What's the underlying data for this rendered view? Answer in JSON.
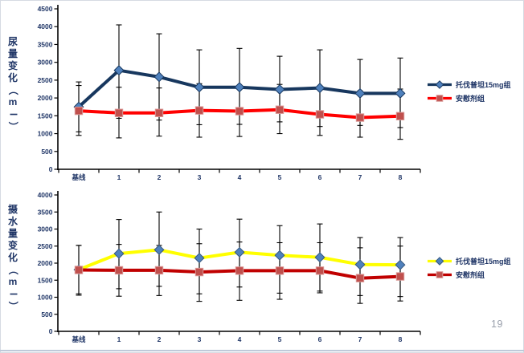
{
  "slide": {
    "page_number": "19",
    "colors": {
      "chart_text": "#1f3566",
      "axis": "#000000",
      "error_bar": "#000000",
      "page_number": "#9aa0ac",
      "bottom_rule": "#bfc9d9",
      "background": "#ffffff"
    }
  },
  "chart_data": [
    {
      "type": "line",
      "ylabel": "尿量变化（ml）",
      "categories": [
        "基线",
        "1",
        "2",
        "3",
        "4",
        "5",
        "6",
        "7",
        "8"
      ],
      "yticks": [
        0,
        500,
        1000,
        1500,
        2000,
        2500,
        3000,
        3500,
        4000,
        4500
      ],
      "ylim": [
        0,
        4500
      ],
      "grid": false,
      "error_bars": true,
      "legend_position": "right",
      "series": [
        {
          "name": "托伐普坦15mg组",
          "line_color": "#17375e",
          "marker": "diamond",
          "marker_color": "#4f81bd",
          "marker_stroke": "#17375e",
          "values": [
            1750,
            2775,
            2590,
            2300,
            2300,
            2240,
            2280,
            2130,
            2130
          ],
          "err_upper": [
            2450,
            4050,
            3800,
            3350,
            3390,
            3170,
            3350,
            3080,
            3120
          ],
          "err_lower": [
            1050,
            1430,
            1380,
            1250,
            1260,
            1330,
            1200,
            1230,
            1170
          ]
        },
        {
          "name": "安慰剂组",
          "line_color": "#ff0000",
          "marker": "square",
          "marker_color": "#c0504d",
          "marker_stroke": "#d99694",
          "values": [
            1640,
            1580,
            1580,
            1650,
            1630,
            1670,
            1540,
            1450,
            1490
          ],
          "err_upper": [
            2350,
            2300,
            2280,
            2400,
            2350,
            2380,
            2300,
            2200,
            2250
          ],
          "err_lower": [
            950,
            880,
            930,
            900,
            920,
            1000,
            950,
            900,
            840
          ]
        }
      ]
    },
    {
      "type": "line",
      "ylabel": "摄水量变化（ml）",
      "categories": [
        "基线",
        "1",
        "2",
        "3",
        "4",
        "5",
        "6",
        "7",
        "8"
      ],
      "yticks": [
        0,
        500,
        1000,
        1500,
        2000,
        2500,
        3000,
        3500,
        4000
      ],
      "ylim": [
        0,
        4000
      ],
      "grid": false,
      "error_bars": true,
      "legend_position": "right",
      "series": [
        {
          "name": "托伐普坦15mg组",
          "line_color": "#ffff00",
          "marker": "diamond",
          "marker_color": "#4f81bd",
          "marker_stroke": "#36587f",
          "values": [
            1810,
            2280,
            2390,
            2150,
            2320,
            2230,
            2170,
            1960,
            1950
          ],
          "err_upper": [
            2520,
            3280,
            3500,
            3000,
            3290,
            3100,
            3150,
            2750,
            2750
          ],
          "err_lower": [
            1100,
            1250,
            1320,
            1100,
            1300,
            1120,
            1180,
            1050,
            1020
          ]
        },
        {
          "name": "安慰剂组",
          "line_color": "#c00000",
          "marker": "square",
          "marker_color": "#c0504d",
          "marker_stroke": "#d99694",
          "values": [
            1800,
            1790,
            1790,
            1740,
            1780,
            1780,
            1780,
            1560,
            1610
          ],
          "err_upper": [
            2520,
            2550,
            2520,
            2570,
            2620,
            2600,
            2600,
            2450,
            2500
          ],
          "err_lower": [
            1060,
            1030,
            1050,
            880,
            910,
            940,
            1130,
            820,
            890
          ]
        }
      ]
    }
  ]
}
